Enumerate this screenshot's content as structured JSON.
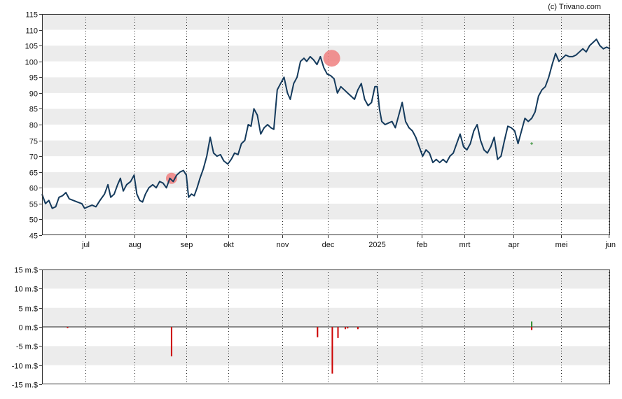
{
  "watermark": "(c) Trivano.com",
  "chart_data": [
    {
      "type": "line",
      "title": "",
      "ylim": [
        45,
        115
      ],
      "yticks": [
        45,
        50,
        55,
        60,
        65,
        70,
        75,
        80,
        85,
        90,
        95,
        100,
        105,
        110,
        115
      ],
      "grid": "horizontal bands + dotted month lines",
      "x_months": [
        {
          "label": "jul",
          "t": 0.077
        },
        {
          "label": "aug",
          "t": 0.163
        },
        {
          "label": "sep",
          "t": 0.254
        },
        {
          "label": "okt",
          "t": 0.328
        },
        {
          "label": "nov",
          "t": 0.423
        },
        {
          "label": "dec",
          "t": 0.503
        },
        {
          "label": "2025",
          "t": 0.589
        },
        {
          "label": "feb",
          "t": 0.668
        },
        {
          "label": "mrt",
          "t": 0.744
        },
        {
          "label": "apr",
          "t": 0.83
        },
        {
          "label": "mei",
          "t": 0.914
        },
        {
          "label": "jun",
          "t": 0.998
        }
      ],
      "series": [
        {
          "color": "#143a5c",
          "points": [
            [
              0.0,
              58
            ],
            [
              0.006,
              55
            ],
            [
              0.012,
              56
            ],
            [
              0.018,
              53.5
            ],
            [
              0.024,
              54
            ],
            [
              0.03,
              57
            ],
            [
              0.036,
              57.5
            ],
            [
              0.042,
              58.5
            ],
            [
              0.048,
              56.5
            ],
            [
              0.055,
              56
            ],
            [
              0.062,
              55.5
            ],
            [
              0.07,
              55
            ],
            [
              0.075,
              53.5
            ],
            [
              0.081,
              54
            ],
            [
              0.088,
              54.5
            ],
            [
              0.095,
              54
            ],
            [
              0.102,
              56
            ],
            [
              0.11,
              58
            ],
            [
              0.116,
              61
            ],
            [
              0.121,
              57
            ],
            [
              0.127,
              58
            ],
            [
              0.133,
              61
            ],
            [
              0.138,
              63
            ],
            [
              0.143,
              59
            ],
            [
              0.149,
              61
            ],
            [
              0.156,
              62
            ],
            [
              0.162,
              64
            ],
            [
              0.167,
              58
            ],
            [
              0.172,
              56
            ],
            [
              0.177,
              55.5
            ],
            [
              0.182,
              58
            ],
            [
              0.188,
              60
            ],
            [
              0.195,
              61
            ],
            [
              0.201,
              60
            ],
            [
              0.207,
              62
            ],
            [
              0.213,
              61.5
            ],
            [
              0.219,
              60
            ],
            [
              0.225,
              63
            ],
            [
              0.231,
              62
            ],
            [
              0.237,
              64
            ],
            [
              0.243,
              65
            ],
            [
              0.249,
              65.5
            ],
            [
              0.254,
              64
            ],
            [
              0.258,
              57
            ],
            [
              0.263,
              58
            ],
            [
              0.268,
              57.5
            ],
            [
              0.273,
              60
            ],
            [
              0.278,
              63
            ],
            [
              0.284,
              66
            ],
            [
              0.29,
              70
            ],
            [
              0.296,
              76
            ],
            [
              0.302,
              71
            ],
            [
              0.308,
              70
            ],
            [
              0.314,
              70.5
            ],
            [
              0.32,
              68.5
            ],
            [
              0.327,
              67.5
            ],
            [
              0.333,
              69
            ],
            [
              0.339,
              71
            ],
            [
              0.345,
              70.5
            ],
            [
              0.351,
              74
            ],
            [
              0.357,
              75
            ],
            [
              0.363,
              80
            ],
            [
              0.368,
              79.5
            ],
            [
              0.373,
              85
            ],
            [
              0.379,
              83
            ],
            [
              0.385,
              77
            ],
            [
              0.391,
              79
            ],
            [
              0.397,
              80
            ],
            [
              0.403,
              79
            ],
            [
              0.408,
              78.5
            ],
            [
              0.414,
              91
            ],
            [
              0.42,
              93
            ],
            [
              0.426,
              95
            ],
            [
              0.432,
              90
            ],
            [
              0.437,
              88
            ],
            [
              0.443,
              93
            ],
            [
              0.449,
              95
            ],
            [
              0.455,
              100
            ],
            [
              0.461,
              101
            ],
            [
              0.466,
              100
            ],
            [
              0.472,
              101.5
            ],
            [
              0.478,
              100.5
            ],
            [
              0.484,
              99
            ],
            [
              0.49,
              101.5
            ],
            [
              0.496,
              98
            ],
            [
              0.502,
              96
            ],
            [
              0.508,
              95.5
            ],
            [
              0.514,
              94.5
            ],
            [
              0.52,
              90
            ],
            [
              0.526,
              92
            ],
            [
              0.532,
              91
            ],
            [
              0.538,
              90
            ],
            [
              0.544,
              89
            ],
            [
              0.55,
              88
            ],
            [
              0.556,
              91
            ],
            [
              0.562,
              93
            ],
            [
              0.568,
              88
            ],
            [
              0.574,
              86
            ],
            [
              0.58,
              87
            ],
            [
              0.586,
              92
            ],
            [
              0.59,
              92
            ],
            [
              0.594,
              85
            ],
            [
              0.598,
              81
            ],
            [
              0.604,
              80
            ],
            [
              0.61,
              80.5
            ],
            [
              0.616,
              81
            ],
            [
              0.622,
              79
            ],
            [
              0.628,
              83
            ],
            [
              0.634,
              87
            ],
            [
              0.64,
              81
            ],
            [
              0.646,
              79
            ],
            [
              0.652,
              78
            ],
            [
              0.658,
              76
            ],
            [
              0.664,
              73
            ],
            [
              0.67,
              70
            ],
            [
              0.676,
              72
            ],
            [
              0.682,
              71
            ],
            [
              0.688,
              68
            ],
            [
              0.694,
              69
            ],
            [
              0.7,
              68
            ],
            [
              0.706,
              69
            ],
            [
              0.712,
              68
            ],
            [
              0.718,
              70
            ],
            [
              0.724,
              71
            ],
            [
              0.73,
              74
            ],
            [
              0.736,
              77
            ],
            [
              0.742,
              73
            ],
            [
              0.748,
              72
            ],
            [
              0.754,
              74
            ],
            [
              0.76,
              78
            ],
            [
              0.766,
              80
            ],
            [
              0.772,
              75
            ],
            [
              0.778,
              72
            ],
            [
              0.784,
              71
            ],
            [
              0.79,
              73
            ],
            [
              0.796,
              76
            ],
            [
              0.802,
              69
            ],
            [
              0.808,
              70
            ],
            [
              0.814,
              75
            ],
            [
              0.82,
              79.5
            ],
            [
              0.826,
              79
            ],
            [
              0.832,
              78
            ],
            [
              0.838,
              74
            ],
            [
              0.844,
              78
            ],
            [
              0.85,
              82
            ],
            [
              0.856,
              81
            ],
            [
              0.862,
              82
            ],
            [
              0.868,
              84
            ],
            [
              0.874,
              89
            ],
            [
              0.88,
              91
            ],
            [
              0.886,
              92
            ],
            [
              0.892,
              95
            ],
            [
              0.898,
              99
            ],
            [
              0.904,
              102.5
            ],
            [
              0.91,
              100
            ],
            [
              0.916,
              101
            ],
            [
              0.922,
              102
            ],
            [
              0.928,
              101.5
            ],
            [
              0.934,
              101.5
            ],
            [
              0.94,
              102
            ],
            [
              0.946,
              103
            ],
            [
              0.952,
              104
            ],
            [
              0.958,
              103
            ],
            [
              0.964,
              105
            ],
            [
              0.97,
              106
            ],
            [
              0.976,
              107
            ],
            [
              0.982,
              105
            ],
            [
              0.988,
              104
            ],
            [
              0.994,
              104.5
            ],
            [
              1.0,
              104
            ]
          ]
        }
      ],
      "markers": [
        {
          "t": 0.228,
          "value": 63,
          "size": "small",
          "color": "#f08080"
        },
        {
          "t": 0.51,
          "value": 101,
          "size": "large",
          "color": "#f08080"
        },
        {
          "t": 0.862,
          "value": 74,
          "size": "tiny",
          "color": "#2a8a2a"
        }
      ]
    },
    {
      "type": "bar",
      "ylim": [
        -15,
        15
      ],
      "yticks": [
        {
          "value": 15,
          "label": "15 m.$"
        },
        {
          "value": 10,
          "label": "10 m.$"
        },
        {
          "value": 5,
          "label": "5 m.$"
        },
        {
          "value": 0,
          "label": "0 m.$"
        },
        {
          "value": -5,
          "label": "-5 m.$"
        },
        {
          "value": -10,
          "label": "-10 m.$"
        },
        {
          "value": -15,
          "label": "-15 m.$"
        }
      ],
      "bars": [
        {
          "t": 0.045,
          "value": -0.3,
          "color": "#cc0000"
        },
        {
          "t": 0.228,
          "value": -7.7,
          "color": "#cc0000"
        },
        {
          "t": 0.485,
          "value": -2.7,
          "color": "#cc0000"
        },
        {
          "t": 0.511,
          "value": -12.2,
          "color": "#cc0000"
        },
        {
          "t": 0.521,
          "value": -2.9,
          "color": "#cc0000"
        },
        {
          "t": 0.534,
          "value": -0.6,
          "color": "#cc0000"
        },
        {
          "t": 0.538,
          "value": -0.4,
          "color": "#cc0000"
        },
        {
          "t": 0.556,
          "value": -0.6,
          "color": "#cc0000"
        },
        {
          "t": 0.862,
          "value": 1.4,
          "color": "#2a8a2a"
        },
        {
          "t": 0.862,
          "value": -0.8,
          "color": "#cc0000"
        }
      ]
    }
  ]
}
